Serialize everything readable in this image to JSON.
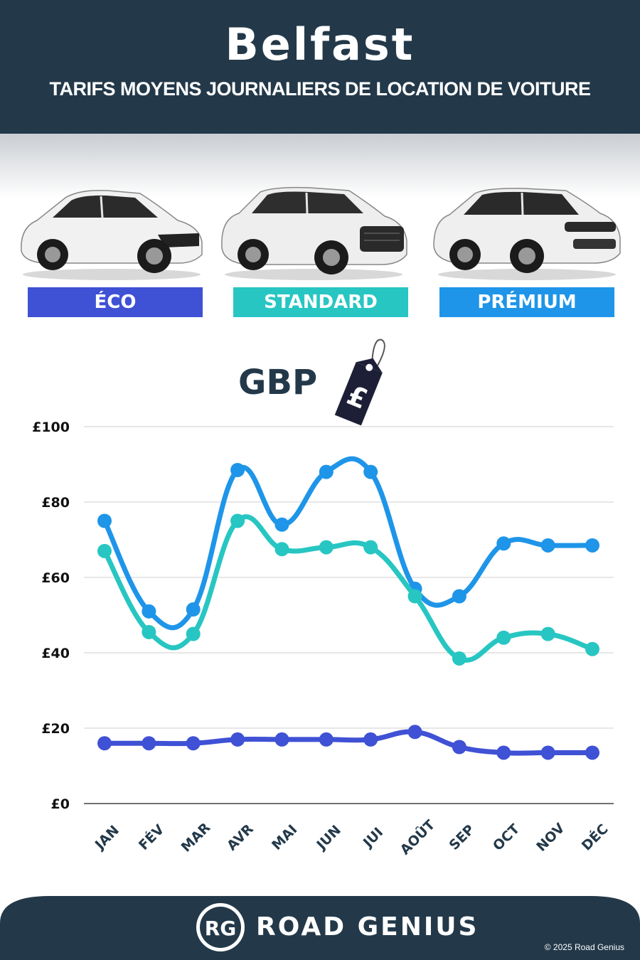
{
  "header": {
    "city": "Belfast",
    "subtitle": "TARIFS MOYENS JOURNALIERS DE LOCATION DE VOITURE"
  },
  "categories": [
    {
      "label": "ÉCO",
      "color": "#3f51d4"
    },
    {
      "label": "STANDARD",
      "color": "#27c6c2"
    },
    {
      "label": "PRÉMIUM",
      "color": "#1e95e8"
    }
  ],
  "currency": {
    "label": "GBP",
    "symbol": "£"
  },
  "chart_data": {
    "type": "line",
    "categories": [
      "JAN",
      "FÉV",
      "MAR",
      "AVR",
      "MAI",
      "JUN",
      "JUI",
      "AOÛT",
      "SEP",
      "OCT",
      "NOV",
      "DÉC"
    ],
    "y_ticks": [
      "£0",
      "£20",
      "£40",
      "£60",
      "£80",
      "£100"
    ],
    "ylim": [
      0,
      100
    ],
    "grid": true,
    "series": [
      {
        "name": "PRÉMIUM",
        "color": "#1e95e8",
        "values": [
          75,
          51,
          51.5,
          88.5,
          74,
          88,
          88,
          57,
          55,
          69,
          68.5,
          68.5
        ]
      },
      {
        "name": "STANDARD",
        "color": "#27c6c2",
        "values": [
          67,
          45.5,
          45,
          75,
          67.5,
          68,
          68,
          55,
          38.5,
          44,
          45,
          41
        ]
      },
      {
        "name": "ÉCO",
        "color": "#3f51d4",
        "values": [
          16,
          16,
          16,
          17,
          17,
          17,
          17,
          19,
          15,
          13.5,
          13.5,
          13.5
        ]
      }
    ]
  },
  "footer": {
    "logo_letters": "RG",
    "brand": "ROAD GENIUS",
    "copyright": "© 2025 Road Genius",
    "bg_color": "#23394a"
  }
}
